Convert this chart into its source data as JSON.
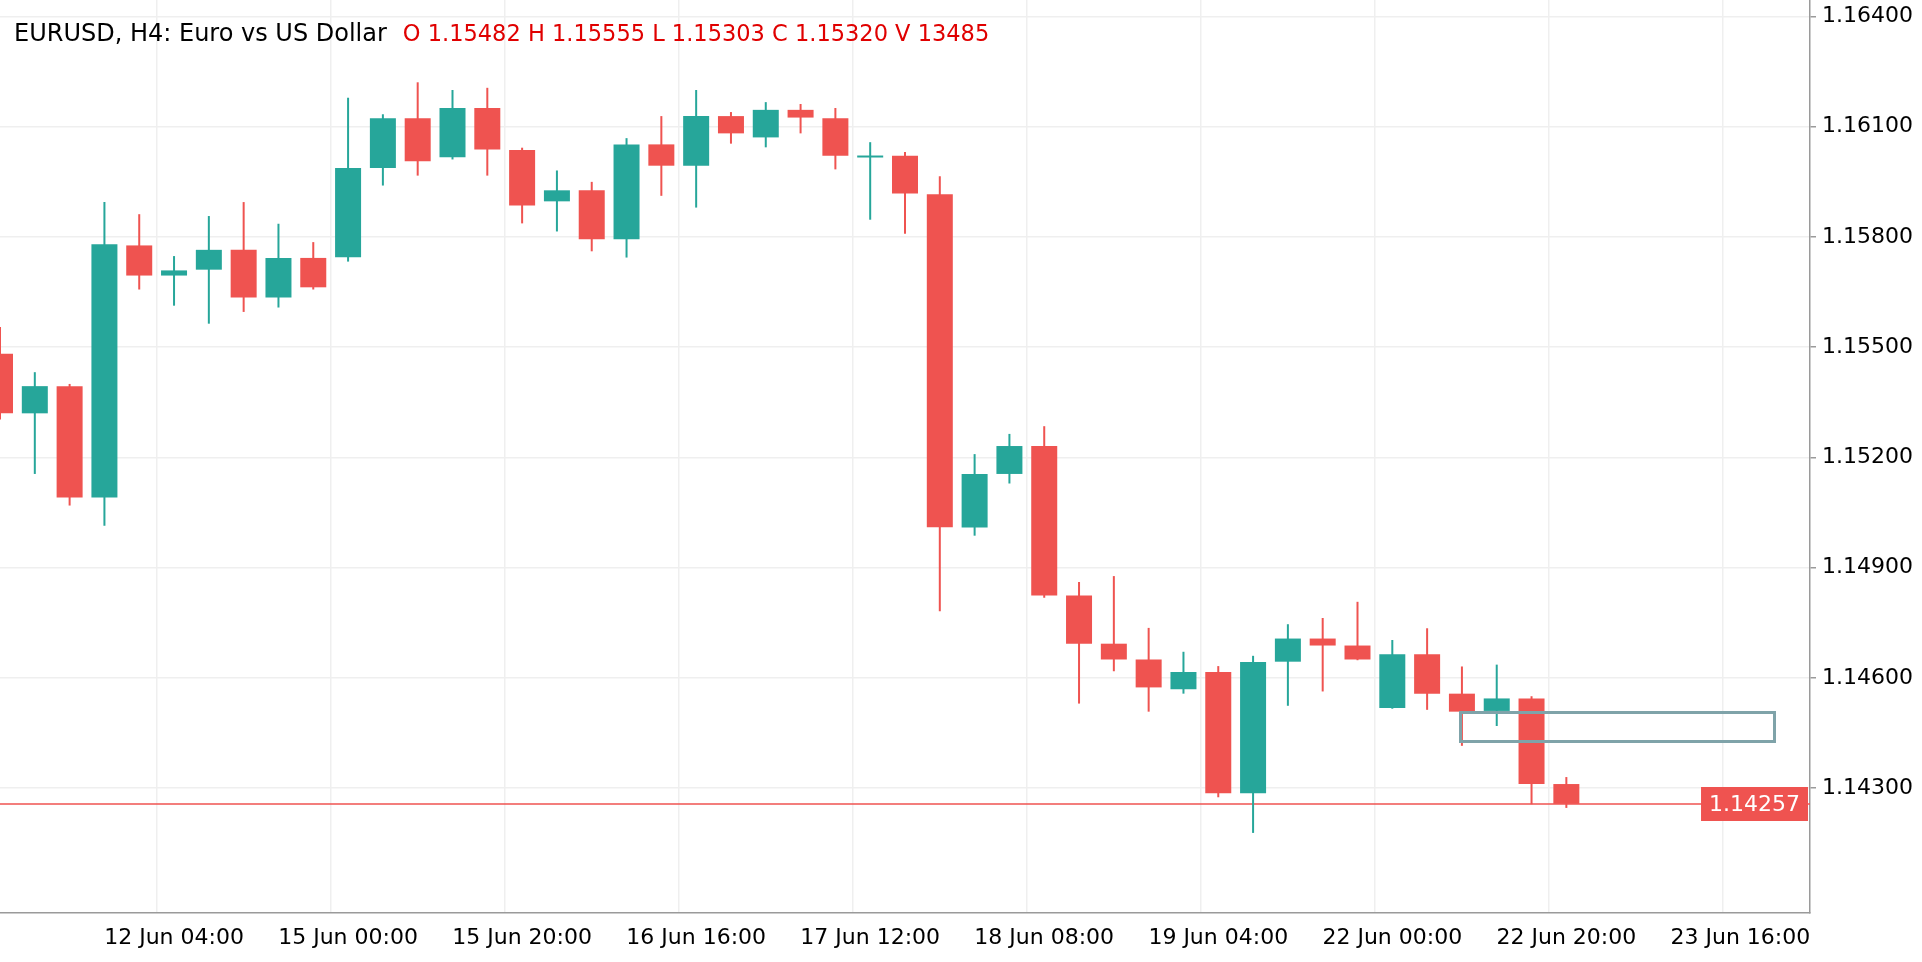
{
  "chart_data": {
    "type": "candlestick",
    "title": "EURUSD, H4: Euro vs US Dollar",
    "subtitle": "O 1.15482 H 1.15555 L 1.15303 C 1.15320 V 13485",
    "categories": [
      null,
      null,
      null,
      null,
      null,
      "12 Jun 04:00",
      null,
      null,
      null,
      null,
      "15 Jun 00:00",
      null,
      null,
      null,
      null,
      "15 Jun 20:00",
      null,
      null,
      null,
      null,
      "16 Jun 16:00",
      null,
      null,
      null,
      null,
      "17 Jun 12:00",
      null,
      null,
      null,
      null,
      "18 Jun 08:00",
      null,
      null,
      null,
      null,
      "19 Jun 04:00",
      null,
      null,
      null,
      null,
      "22 Jun 00:00",
      null,
      null,
      null,
      null,
      "22 Jun 20:00",
      null,
      null,
      null,
      null,
      "23 Jun 16:00",
      null,
      null
    ],
    "ohlc": [
      [
        1.15482,
        1.15555,
        1.15303,
        1.1532
      ],
      [
        1.1532,
        1.15432,
        1.15155,
        1.15394
      ],
      [
        1.15394,
        1.154,
        1.15069,
        1.15091
      ],
      [
        1.15091,
        1.15895,
        1.15014,
        1.1578
      ],
      [
        1.15777,
        1.15862,
        1.15657,
        1.15695
      ],
      [
        1.15695,
        1.15748,
        1.15613,
        1.15709
      ],
      [
        1.15711,
        1.15857,
        1.15564,
        1.15765
      ],
      [
        1.15765,
        1.15895,
        1.15596,
        1.15635
      ],
      [
        1.15635,
        1.15836,
        1.15608,
        1.15743
      ],
      [
        1.15743,
        1.15786,
        1.15657,
        1.15663
      ],
      [
        1.15745,
        1.16179,
        1.15733,
        1.15988
      ],
      [
        1.15988,
        1.16134,
        1.1594,
        1.16123
      ],
      [
        1.16123,
        1.16221,
        1.15967,
        1.16006
      ],
      [
        1.16017,
        1.162,
        1.16011,
        1.16151
      ],
      [
        1.16151,
        1.16206,
        1.15967,
        1.16038
      ],
      [
        1.16037,
        1.16043,
        1.15837,
        1.15886
      ],
      [
        1.15897,
        1.15981,
        1.15815,
        1.15927
      ],
      [
        1.15927,
        1.1595,
        1.15761,
        1.15794
      ],
      [
        1.15794,
        1.16069,
        1.15744,
        1.16052
      ],
      [
        1.16052,
        1.16129,
        1.15912,
        1.15994
      ],
      [
        1.15994,
        1.162,
        1.1588,
        1.16129
      ],
      [
        1.16129,
        1.1614,
        1.16054,
        1.16082
      ],
      [
        1.16071,
        1.16167,
        1.16044,
        1.16146
      ],
      [
        1.16146,
        1.16162,
        1.16082,
        1.16125
      ],
      [
        1.16123,
        1.16151,
        1.15984,
        1.16021
      ],
      [
        1.16018,
        1.16058,
        1.15847,
        1.1602
      ],
      [
        1.16021,
        1.16031,
        1.15809,
        1.15918
      ],
      [
        1.15916,
        1.15965,
        1.14781,
        1.1501
      ],
      [
        1.15009,
        1.15209,
        1.14987,
        1.15155
      ],
      [
        1.15155,
        1.15264,
        1.15129,
        1.15231
      ],
      [
        1.15231,
        1.15285,
        1.14818,
        1.14824
      ],
      [
        1.14824,
        1.14861,
        1.1453,
        1.14693
      ],
      [
        1.14693,
        1.14877,
        1.14618,
        1.1465
      ],
      [
        1.1465,
        1.14736,
        1.14508,
        1.14574
      ],
      [
        1.14569,
        1.14671,
        1.14557,
        1.14616
      ],
      [
        1.14616,
        1.14632,
        1.14275,
        1.14286
      ],
      [
        1.14286,
        1.1466,
        1.14178,
        1.14643
      ],
      [
        1.14644,
        1.14746,
        1.14524,
        1.14707
      ],
      [
        1.14707,
        1.14763,
        1.14563,
        1.14688
      ],
      [
        1.14688,
        1.14807,
        1.14648,
        1.1465
      ],
      [
        1.14518,
        1.14703,
        1.14516,
        1.14664
      ],
      [
        1.14664,
        1.14735,
        1.14513,
        1.14557
      ],
      [
        1.14557,
        1.14631,
        1.14415,
        1.14508
      ],
      [
        1.1451,
        1.14636,
        1.14469,
        1.14544
      ],
      [
        1.14544,
        1.1455,
        1.14256,
        1.14311
      ],
      [
        1.14311,
        1.1433,
        1.14246,
        1.14257
      ],
      null,
      null,
      null,
      null,
      null,
      null,
      null
    ],
    "colors": [
      "#ef5350",
      "#26a69a",
      "#ef5350",
      "#26a69a",
      "#ef5350",
      "#26a69a",
      "#26a69a",
      "#ef5350",
      "#26a69a",
      "#ef5350",
      "#26a69a",
      "#26a69a",
      "#ef5350",
      "#26a69a",
      "#ef5350",
      "#ef5350",
      "#26a69a",
      "#ef5350",
      "#26a69a",
      "#ef5350",
      "#26a69a",
      "#ef5350",
      "#26a69a",
      "#ef5350",
      "#ef5350",
      "#26a69a",
      "#ef5350",
      "#ef5350",
      "#26a69a",
      "#26a69a",
      "#ef5350",
      "#ef5350",
      "#ef5350",
      "#ef5350",
      "#26a69a",
      "#ef5350",
      "#26a69a",
      "#26a69a",
      "#ef5350",
      "#ef5350",
      "#26a69a",
      "#ef5350",
      "#ef5350",
      "#26a69a",
      "#ef5350",
      "#ef5350",
      null,
      null,
      null,
      null,
      null,
      null,
      null
    ],
    "ylim": [
      1.1396,
      1.16445
    ],
    "yticks": [
      {
        "value": 1.143,
        "label": "1.14300"
      },
      {
        "value": 1.146,
        "label": "1.14600"
      },
      {
        "value": 1.149,
        "label": "1.14900"
      },
      {
        "value": 1.152,
        "label": "1.15200"
      },
      {
        "value": 1.155,
        "label": "1.15500"
      },
      {
        "value": 1.158,
        "label": "1.15800"
      },
      {
        "value": 1.161,
        "label": "1.16100"
      },
      {
        "value": 1.164,
        "label": "1.16400"
      }
    ],
    "ref_lines": [
      {
        "axis": "y",
        "value": 1.14257,
        "label": "1.14257",
        "color": "#ef5350"
      }
    ],
    "grid": true
  }
}
